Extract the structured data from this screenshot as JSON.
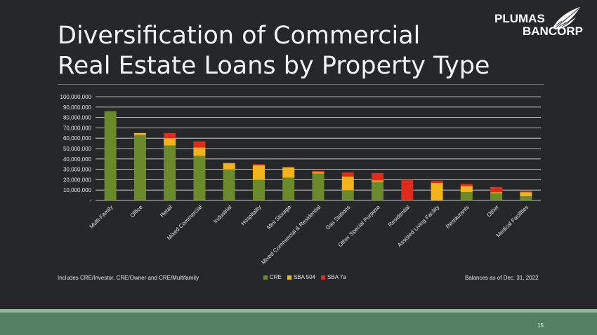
{
  "slide": {
    "title_line1": "Diversification of Commercial",
    "title_line2": "Real Estate Loans by Property Type",
    "logo_line1": "PLUMAS",
    "logo_line2": "BANCORP",
    "footnote_left": "Includes CRE/Investor, CRE/Owner and CRE/Multifamily",
    "footnote_right": "Balances as of Dec. 31, 2022",
    "page_number": "15"
  },
  "chart_data": {
    "type": "bar",
    "stacked": true,
    "categories": [
      "Multi-Family",
      "Office",
      "Retail",
      "Mixed Commercial",
      "Industrial",
      "Hospitality",
      "Mini Storage",
      "Mixed Commercial & Residential",
      "Gas Stations",
      "Other Special Purpose",
      "Residential",
      "Assisted Living Facility",
      "Restaurants",
      "Other",
      "Medical Facilities"
    ],
    "series": [
      {
        "name": "CRE",
        "color": "#6b8a2b",
        "values": [
          86000000,
          63000000,
          53000000,
          43000000,
          30000000,
          20000000,
          22000000,
          26000000,
          10000000,
          18000000,
          0,
          0,
          8000000,
          7000000,
          4000000
        ]
      },
      {
        "name": "SBA 504",
        "color": "#f2b31c",
        "values": [
          0,
          2000000,
          7000000,
          8000000,
          6000000,
          14000000,
          10000000,
          1500000,
          13000000,
          1500000,
          0,
          17000000,
          6000000,
          1000000,
          4000000
        ]
      },
      {
        "name": "SBA 7a",
        "color": "#e02b1a",
        "values": [
          0,
          0,
          5000000,
          6000000,
          0,
          1000000,
          0,
          1000000,
          4000000,
          7000000,
          20000000,
          2000000,
          2000000,
          5000000,
          1000000
        ]
      }
    ],
    "yticks": [
      "100,000,000",
      "90,000,000",
      "80,000,000",
      "70,000,000",
      "60,000,000",
      "50,000,000",
      "40,000,000",
      "30,000,000",
      "20,000,000",
      "10,000,000",
      "-"
    ],
    "ylim": [
      0,
      100000000
    ],
    "grid": true,
    "legend": "bottom"
  }
}
